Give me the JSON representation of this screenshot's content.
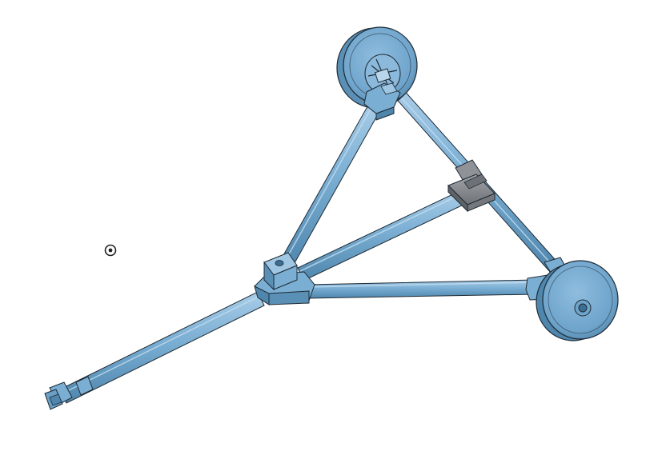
{
  "viewport": {
    "background": "#ffffff",
    "model": {
      "part_color": "#7aaed3",
      "part_highlight": "#a9cde8",
      "part_shadow": "#4f86ad",
      "bracket_color": "#7f8388",
      "bracket_highlight": "#a2a6aa",
      "edge_color": "#1f2a33"
    },
    "icons": {
      "origin_marker": "origin-icon"
    }
  }
}
